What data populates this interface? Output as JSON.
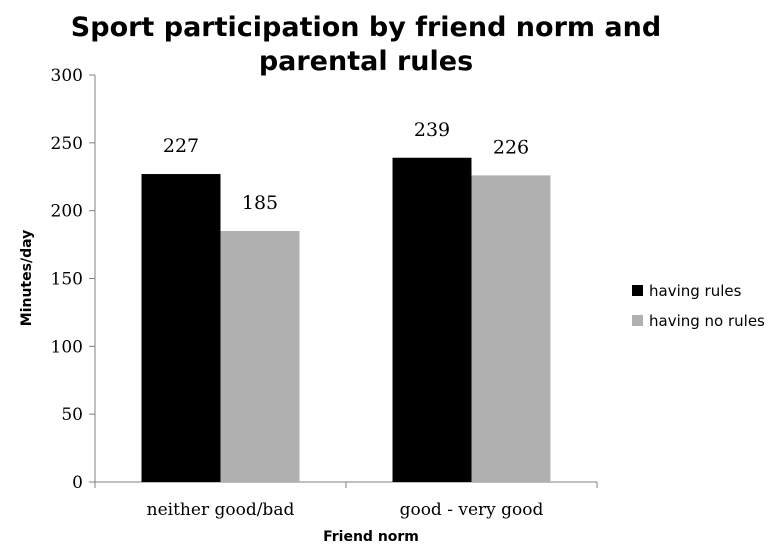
{
  "chart_data": {
    "type": "bar",
    "title_lines": [
      "Sport participation by friend norm and",
      "parental rules"
    ],
    "xlabel": "Friend norm",
    "ylabel": "Minutes/day",
    "categories": [
      "neither good/bad",
      "good - very good"
    ],
    "series": [
      {
        "name": "having rules",
        "values": [
          227,
          239
        ],
        "color": "#000000"
      },
      {
        "name": "having no rules",
        "values": [
          185,
          226
        ],
        "color": "#b0b0b0"
      }
    ],
    "data_labels": [
      [
        "227",
        "239"
      ],
      [
        "185",
        "226"
      ]
    ],
    "ylim": [
      0,
      300
    ],
    "yticks": [
      0,
      50,
      100,
      150,
      200,
      250,
      300
    ],
    "grid": false,
    "legend_position": "right"
  }
}
